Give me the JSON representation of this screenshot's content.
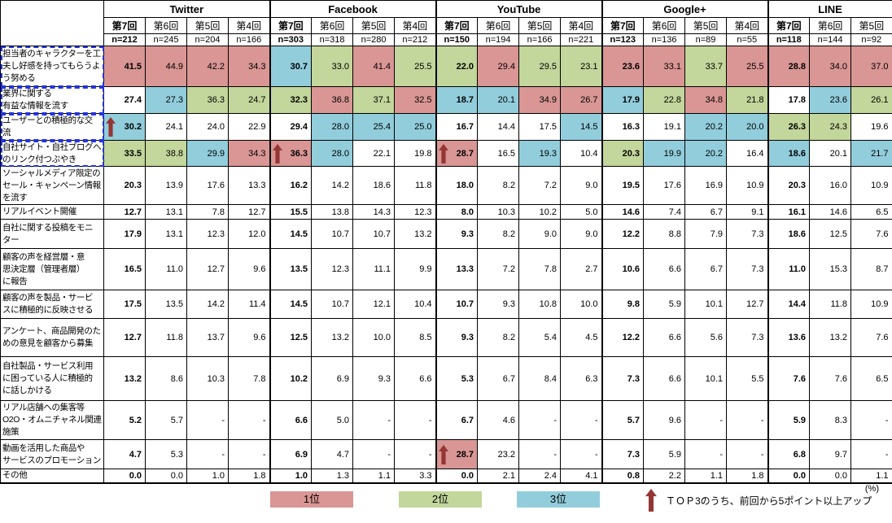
{
  "chart_data": {
    "type": "table",
    "unit_label": "(%)",
    "legend": {
      "items": [
        {
          "label": "1位",
          "color": "#d99694"
        },
        {
          "label": "2位",
          "color": "#c3d69b"
        },
        {
          "label": "3位",
          "color": "#92cddc"
        }
      ],
      "arrow_note": "ＴＯＰ3のうち、前回から5ポイント以上アップ",
      "arrow_color": "#943634",
      "selection_color": "#2233dd"
    },
    "platforms": [
      {
        "name": "Twitter",
        "rounds": [
          "第7回",
          "第6回",
          "第5回",
          "第4回"
        ],
        "n_labels": [
          "n=212",
          "n=245",
          "n=204",
          "n=166"
        ]
      },
      {
        "name": "Facebook",
        "rounds": [
          "第7回",
          "第6回",
          "第5回",
          "第4回"
        ],
        "n_labels": [
          "n=303",
          "n=318",
          "n=280",
          "n=212"
        ]
      },
      {
        "name": "YouTube",
        "rounds": [
          "第7回",
          "第6回",
          "第5回",
          "第4回"
        ],
        "n_labels": [
          "n=150",
          "n=194",
          "n=166",
          "n=221"
        ]
      },
      {
        "name": "Google+",
        "rounds": [
          "第7回",
          "第6回",
          "第5回",
          "第4回"
        ],
        "n_labels": [
          "n=123",
          "n=136",
          "n=89",
          "n=55"
        ]
      },
      {
        "name": "LINE",
        "rounds": [
          "第7回",
          "第6回",
          "第5回"
        ],
        "n_labels": [
          "n=118",
          "n=144",
          "n=92"
        ]
      }
    ],
    "rows": [
      {
        "label": "担当者のキャラクターを工\n夫し好感を持ってもらうよ\nう努める",
        "values": [
          "41.5",
          "44.9",
          "42.2",
          "34.3",
          "30.7",
          "33.0",
          "41.4",
          "25.5",
          "22.0",
          "29.4",
          "29.5",
          "23.1",
          "23.6",
          "33.1",
          "33.7",
          "25.5",
          "28.8",
          "34.0",
          "37.0"
        ],
        "colors": [
          "p",
          "p",
          "p",
          "p",
          "b",
          "g",
          "p",
          "g",
          "g",
          "p",
          "g",
          "g",
          "p",
          "p",
          "g",
          "p",
          "p",
          "p",
          "p"
        ],
        "arrows": []
      },
      {
        "label": "業界に関する\n有益な情報を流す",
        "values": [
          "27.4",
          "27.3",
          "36.3",
          "24.7",
          "32.3",
          "36.8",
          "37.1",
          "32.5",
          "18.7",
          "20.1",
          "34.9",
          "26.7",
          "17.9",
          "22.8",
          "34.8",
          "21.8",
          "17.8",
          "23.6",
          "26.1"
        ],
        "colors": [
          "w",
          "b",
          "g",
          "g",
          "g",
          "p",
          "g",
          "p",
          "b",
          "b",
          "p",
          "p",
          "b",
          "g",
          "p",
          "g",
          "w",
          "b",
          "g"
        ],
        "arrows": []
      },
      {
        "label": "ユーザーとの積極的な交\n流",
        "values": [
          "30.2",
          "24.1",
          "24.0",
          "22.9",
          "29.4",
          "28.0",
          "25.4",
          "25.0",
          "16.7",
          "14.4",
          "17.5",
          "14.5",
          "16.3",
          "19.1",
          "20.2",
          "20.0",
          "26.3",
          "24.3",
          "19.6"
        ],
        "colors": [
          "b",
          "w",
          "w",
          "w",
          "w",
          "b",
          "b",
          "b",
          "w",
          "w",
          "w",
          "b",
          "w",
          "w",
          "b",
          "b",
          "g",
          "g",
          "w"
        ],
        "arrows": [
          0
        ]
      },
      {
        "label": "自社サイト・自社ブログへ\nのリンク付つぶやき",
        "values": [
          "33.5",
          "38.8",
          "29.9",
          "34.3",
          "36.3",
          "28.0",
          "22.1",
          "19.8",
          "28.7",
          "16.5",
          "19.3",
          "10.4",
          "20.3",
          "19.9",
          "20.2",
          "16.4",
          "18.6",
          "20.1",
          "21.7"
        ],
        "colors": [
          "g",
          "g",
          "b",
          "p",
          "p",
          "b",
          "w",
          "w",
          "p",
          "w",
          "b",
          "w",
          "g",
          "b",
          "b",
          "w",
          "b",
          "w",
          "b"
        ],
        "arrows": [
          4,
          8
        ]
      },
      {
        "label": "ソーシャルメディア限定の\nセール・キャンペーン情報\nを流す",
        "values": [
          "20.3",
          "13.9",
          "17.6",
          "13.3",
          "16.2",
          "14.2",
          "18.6",
          "11.8",
          "18.0",
          "8.2",
          "7.2",
          "9.0",
          "19.5",
          "17.6",
          "16.9",
          "10.9",
          "20.3",
          "16.0",
          "10.9"
        ],
        "colors": [],
        "arrows": []
      },
      {
        "label": "リアルイベント開催",
        "values": [
          "12.7",
          "13.1",
          "7.8",
          "12.7",
          "15.5",
          "13.8",
          "14.3",
          "12.3",
          "8.0",
          "10.3",
          "10.2",
          "5.0",
          "14.6",
          "7.4",
          "6.7",
          "9.1",
          "16.1",
          "14.6",
          "6.5"
        ],
        "colors": [],
        "arrows": []
      },
      {
        "label": "自社に関する投稿をモニ\nター",
        "values": [
          "17.9",
          "13.1",
          "12.3",
          "12.0",
          "14.5",
          "10.7",
          "10.7",
          "13.2",
          "9.3",
          "8.2",
          "9.0",
          "9.0",
          "12.2",
          "8.8",
          "7.9",
          "7.3",
          "18.6",
          "12.5",
          "7.6"
        ],
        "colors": [],
        "arrows": []
      },
      {
        "label": "顧客の声を経営層・意\n思決定層（管理者層）\nに報告",
        "values": [
          "16.5",
          "11.0",
          "12.7",
          "9.6",
          "13.5",
          "12.3",
          "11.1",
          "9.9",
          "13.3",
          "7.2",
          "7.8",
          "2.7",
          "10.6",
          "6.6",
          "6.7",
          "7.3",
          "11.0",
          "15.3",
          "8.7"
        ],
        "colors": [],
        "arrows": []
      },
      {
        "label": "顧客の声を製品・サービ\nスに積極的に反映させる",
        "values": [
          "17.5",
          "13.5",
          "14.2",
          "11.4",
          "14.5",
          "10.7",
          "12.1",
          "10.4",
          "10.7",
          "9.3",
          "10.8",
          "10.0",
          "9.8",
          "5.9",
          "10.1",
          "12.7",
          "14.4",
          "11.8",
          "10.9"
        ],
        "colors": [],
        "arrows": []
      },
      {
        "label": "アンケート、商品開発のた\nめの意見を顧客から募集",
        "values": [
          "12.7",
          "11.8",
          "13.7",
          "9.6",
          "12.5",
          "13.2",
          "10.0",
          "8.5",
          "9.3",
          "8.2",
          "5.4",
          "4.5",
          "12.2",
          "6.6",
          "5.6",
          "7.3",
          "13.6",
          "13.2",
          "7.6"
        ],
        "colors": [],
        "arrows": []
      },
      {
        "label": "自社製品・サービス利用\nに困っている人に積極的\nに話しかける",
        "values": [
          "13.2",
          "8.6",
          "10.3",
          "7.8",
          "10.2",
          "6.9",
          "9.3",
          "6.6",
          "5.3",
          "6.7",
          "8.4",
          "6.3",
          "7.3",
          "6.6",
          "10.1",
          "5.5",
          "7.6",
          "7.6",
          "6.5"
        ],
        "colors": [],
        "arrows": []
      },
      {
        "label": "リアル店舗への集客等\nO2O・オムニチャネル関連\n施策",
        "values": [
          "5.2",
          "5.7",
          "-",
          "-",
          "6.6",
          "5.0",
          "-",
          "-",
          "6.7",
          "4.6",
          "-",
          "-",
          "5.7",
          "9.6",
          "-",
          "-",
          "5.9",
          "8.3",
          "-"
        ],
        "colors": [],
        "arrows": []
      },
      {
        "label": "動画を活用した商品や\nサービスのプロモーション",
        "values": [
          "4.7",
          "5.3",
          "-",
          "-",
          "6.9",
          "4.7",
          "-",
          "-",
          "28.7",
          "23.2",
          "-",
          "-",
          "7.3",
          "5.9",
          "-",
          "-",
          "6.8",
          "9.7",
          "-"
        ],
        "colors": [
          "w",
          "w",
          "w",
          "w",
          "w",
          "w",
          "w",
          "w",
          "p",
          "w",
          "w",
          "w",
          "w",
          "w",
          "w",
          "w",
          "w",
          "w",
          "w"
        ],
        "arrows": [
          8
        ]
      },
      {
        "label": "その他",
        "values": [
          "0.0",
          "0.0",
          "1.0",
          "1.8",
          "1.0",
          "1.3",
          "1.1",
          "3.3",
          "0.0",
          "2.1",
          "2.4",
          "4.1",
          "0.8",
          "2.2",
          "1.1",
          "1.8",
          "0.0",
          "0.0",
          "1.1"
        ],
        "colors": [],
        "arrows": []
      }
    ]
  }
}
